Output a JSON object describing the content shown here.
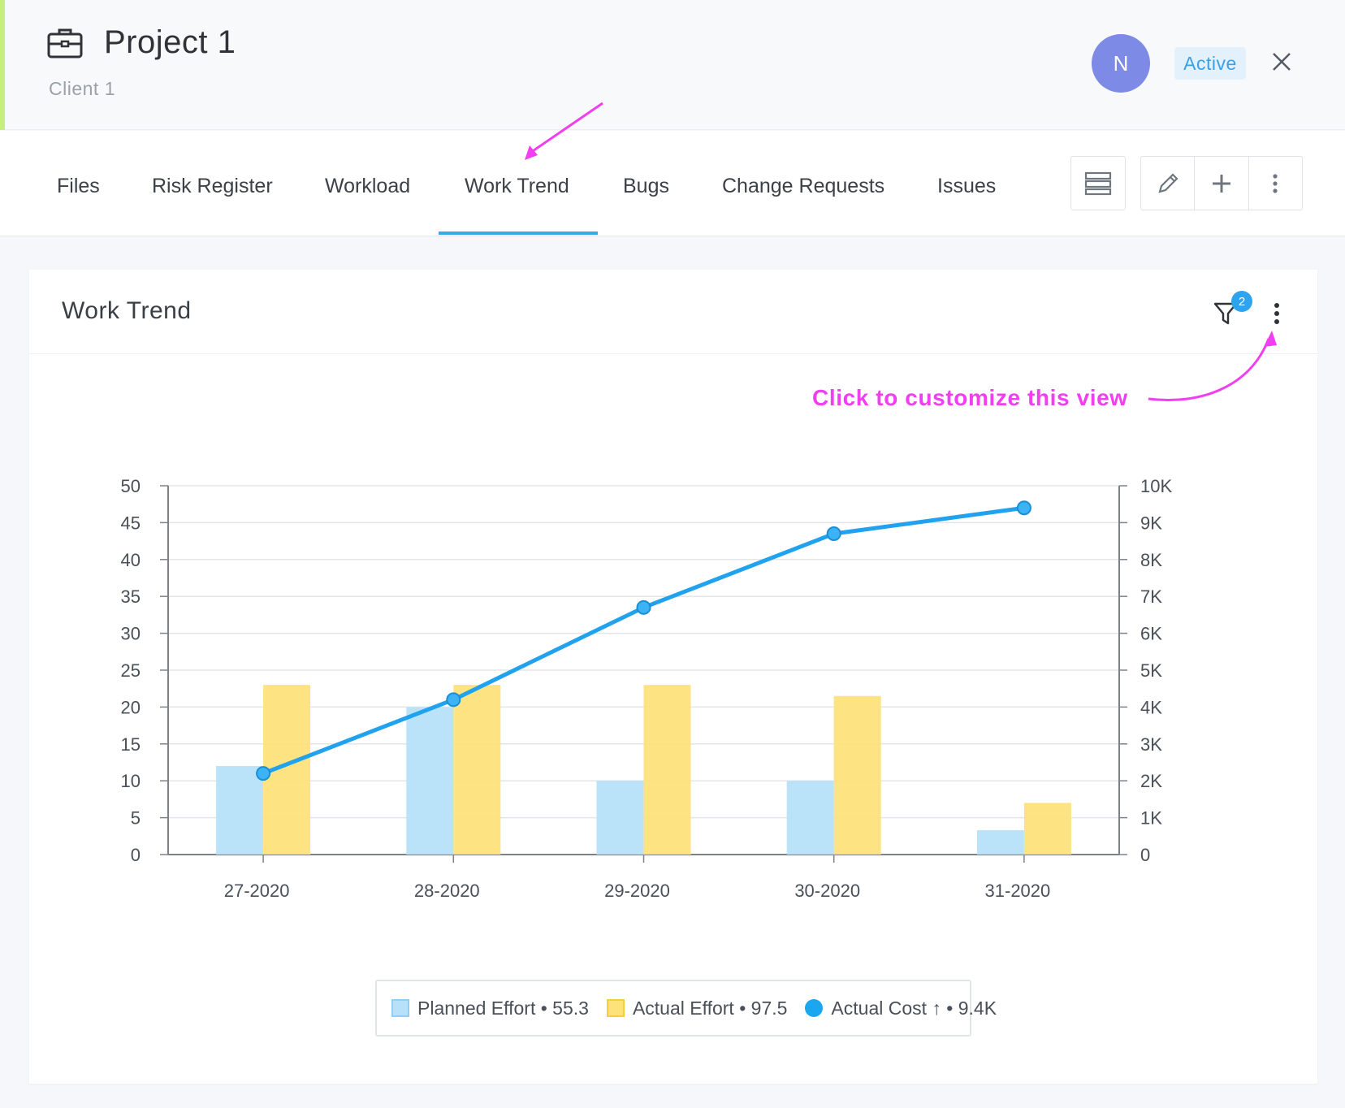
{
  "header": {
    "title": "Project 1",
    "client": "Client 1",
    "avatar_initial": "N",
    "status": "Active",
    "accent_color": "#c7ef7e",
    "avatar_color": "#7d8be6"
  },
  "tabs": [
    {
      "label": "Files"
    },
    {
      "label": "Risk Register"
    },
    {
      "label": "Workload"
    },
    {
      "label": "Work Trend",
      "active": true
    },
    {
      "label": "Bugs"
    },
    {
      "label": "Change Requests"
    },
    {
      "label": "Issues"
    }
  ],
  "toolbar": {
    "icons": [
      "list-view-icon",
      "pencil-icon",
      "plus-icon",
      "more-vertical-icon"
    ]
  },
  "card": {
    "title": "Work Trend",
    "filter_count": "2"
  },
  "annotation": {
    "text": "Click to customize this view",
    "color": "#f03ef0"
  },
  "chart_data": {
    "type": "bar",
    "categories": [
      "27-2020",
      "28-2020",
      "29-2020",
      "30-2020",
      "31-2020"
    ],
    "series": [
      {
        "name": "Planned Effort",
        "type": "bar",
        "axis": "left",
        "values": [
          12,
          20,
          10,
          10,
          3.3
        ],
        "color": "#b6e1f9"
      },
      {
        "name": "Actual Effort",
        "type": "bar",
        "axis": "left",
        "values": [
          23,
          23,
          23,
          21.5,
          7
        ],
        "color": "#fde27a"
      },
      {
        "name": "Actual Cost",
        "type": "line",
        "axis": "right",
        "values": [
          2200,
          4200,
          6700,
          8700,
          9400
        ],
        "color": "#1ba6f0"
      }
    ],
    "left_axis": {
      "ticks": [
        "0",
        "5",
        "10",
        "15",
        "20",
        "25",
        "30",
        "35",
        "40",
        "45",
        "50"
      ],
      "ylim": [
        0,
        50
      ]
    },
    "right_axis": {
      "ticks": [
        "0",
        "1K",
        "2K",
        "3K",
        "4K",
        "5K",
        "6K",
        "7K",
        "8K",
        "9K",
        "10K"
      ],
      "ylim": [
        0,
        10000
      ]
    },
    "grid": true,
    "legend_position": "bottom"
  },
  "legend": [
    {
      "label": "Planned Effort • 55.3"
    },
    {
      "label": "Actual Effort • 97.5"
    },
    {
      "label": "Actual Cost ↑ • 9.4K"
    }
  ]
}
